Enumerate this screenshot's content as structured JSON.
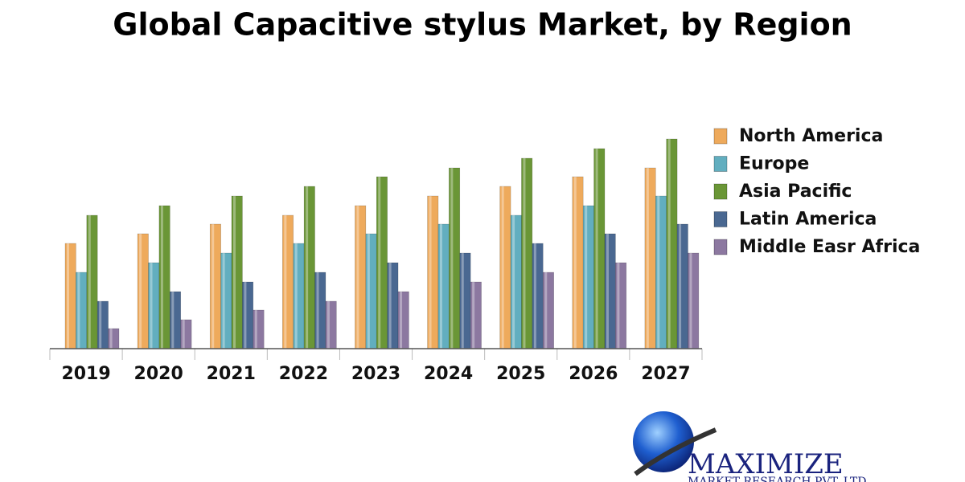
{
  "chart_data": {
    "type": "bar",
    "title": "Global Capacitive stylus Market, by Region",
    "categories": [
      "2019",
      "2020",
      "2021",
      "2022",
      "2023",
      "2024",
      "2025",
      "2026",
      "2027"
    ],
    "series": [
      {
        "name": "North America",
        "color": "#eeaa5c",
        "values": [
          131,
          143,
          155,
          166,
          178,
          190,
          202,
          214,
          225
        ]
      },
      {
        "name": "Europe",
        "color": "#62aebf",
        "values": [
          95,
          107,
          119,
          131,
          143,
          155,
          166,
          178,
          190
        ]
      },
      {
        "name": "Asia Pacific",
        "color": "#6a9636",
        "values": [
          166,
          178,
          190,
          202,
          214,
          225,
          237,
          249,
          261
        ]
      },
      {
        "name": "Latin America",
        "color": "#4a6891",
        "values": [
          59,
          71,
          83,
          95,
          107,
          119,
          131,
          143,
          155
        ]
      },
      {
        "name": "Middle Easr Africa",
        "color": "#8c78a0",
        "values": [
          25,
          36,
          48,
          59,
          71,
          83,
          95,
          107,
          119
        ]
      }
    ],
    "ylim": [
      0,
      300
    ],
    "legend": "right"
  },
  "logo": {
    "name": "MAXIMIZE",
    "tagline": "MARKET RESEARCH PVT. LTD."
  }
}
